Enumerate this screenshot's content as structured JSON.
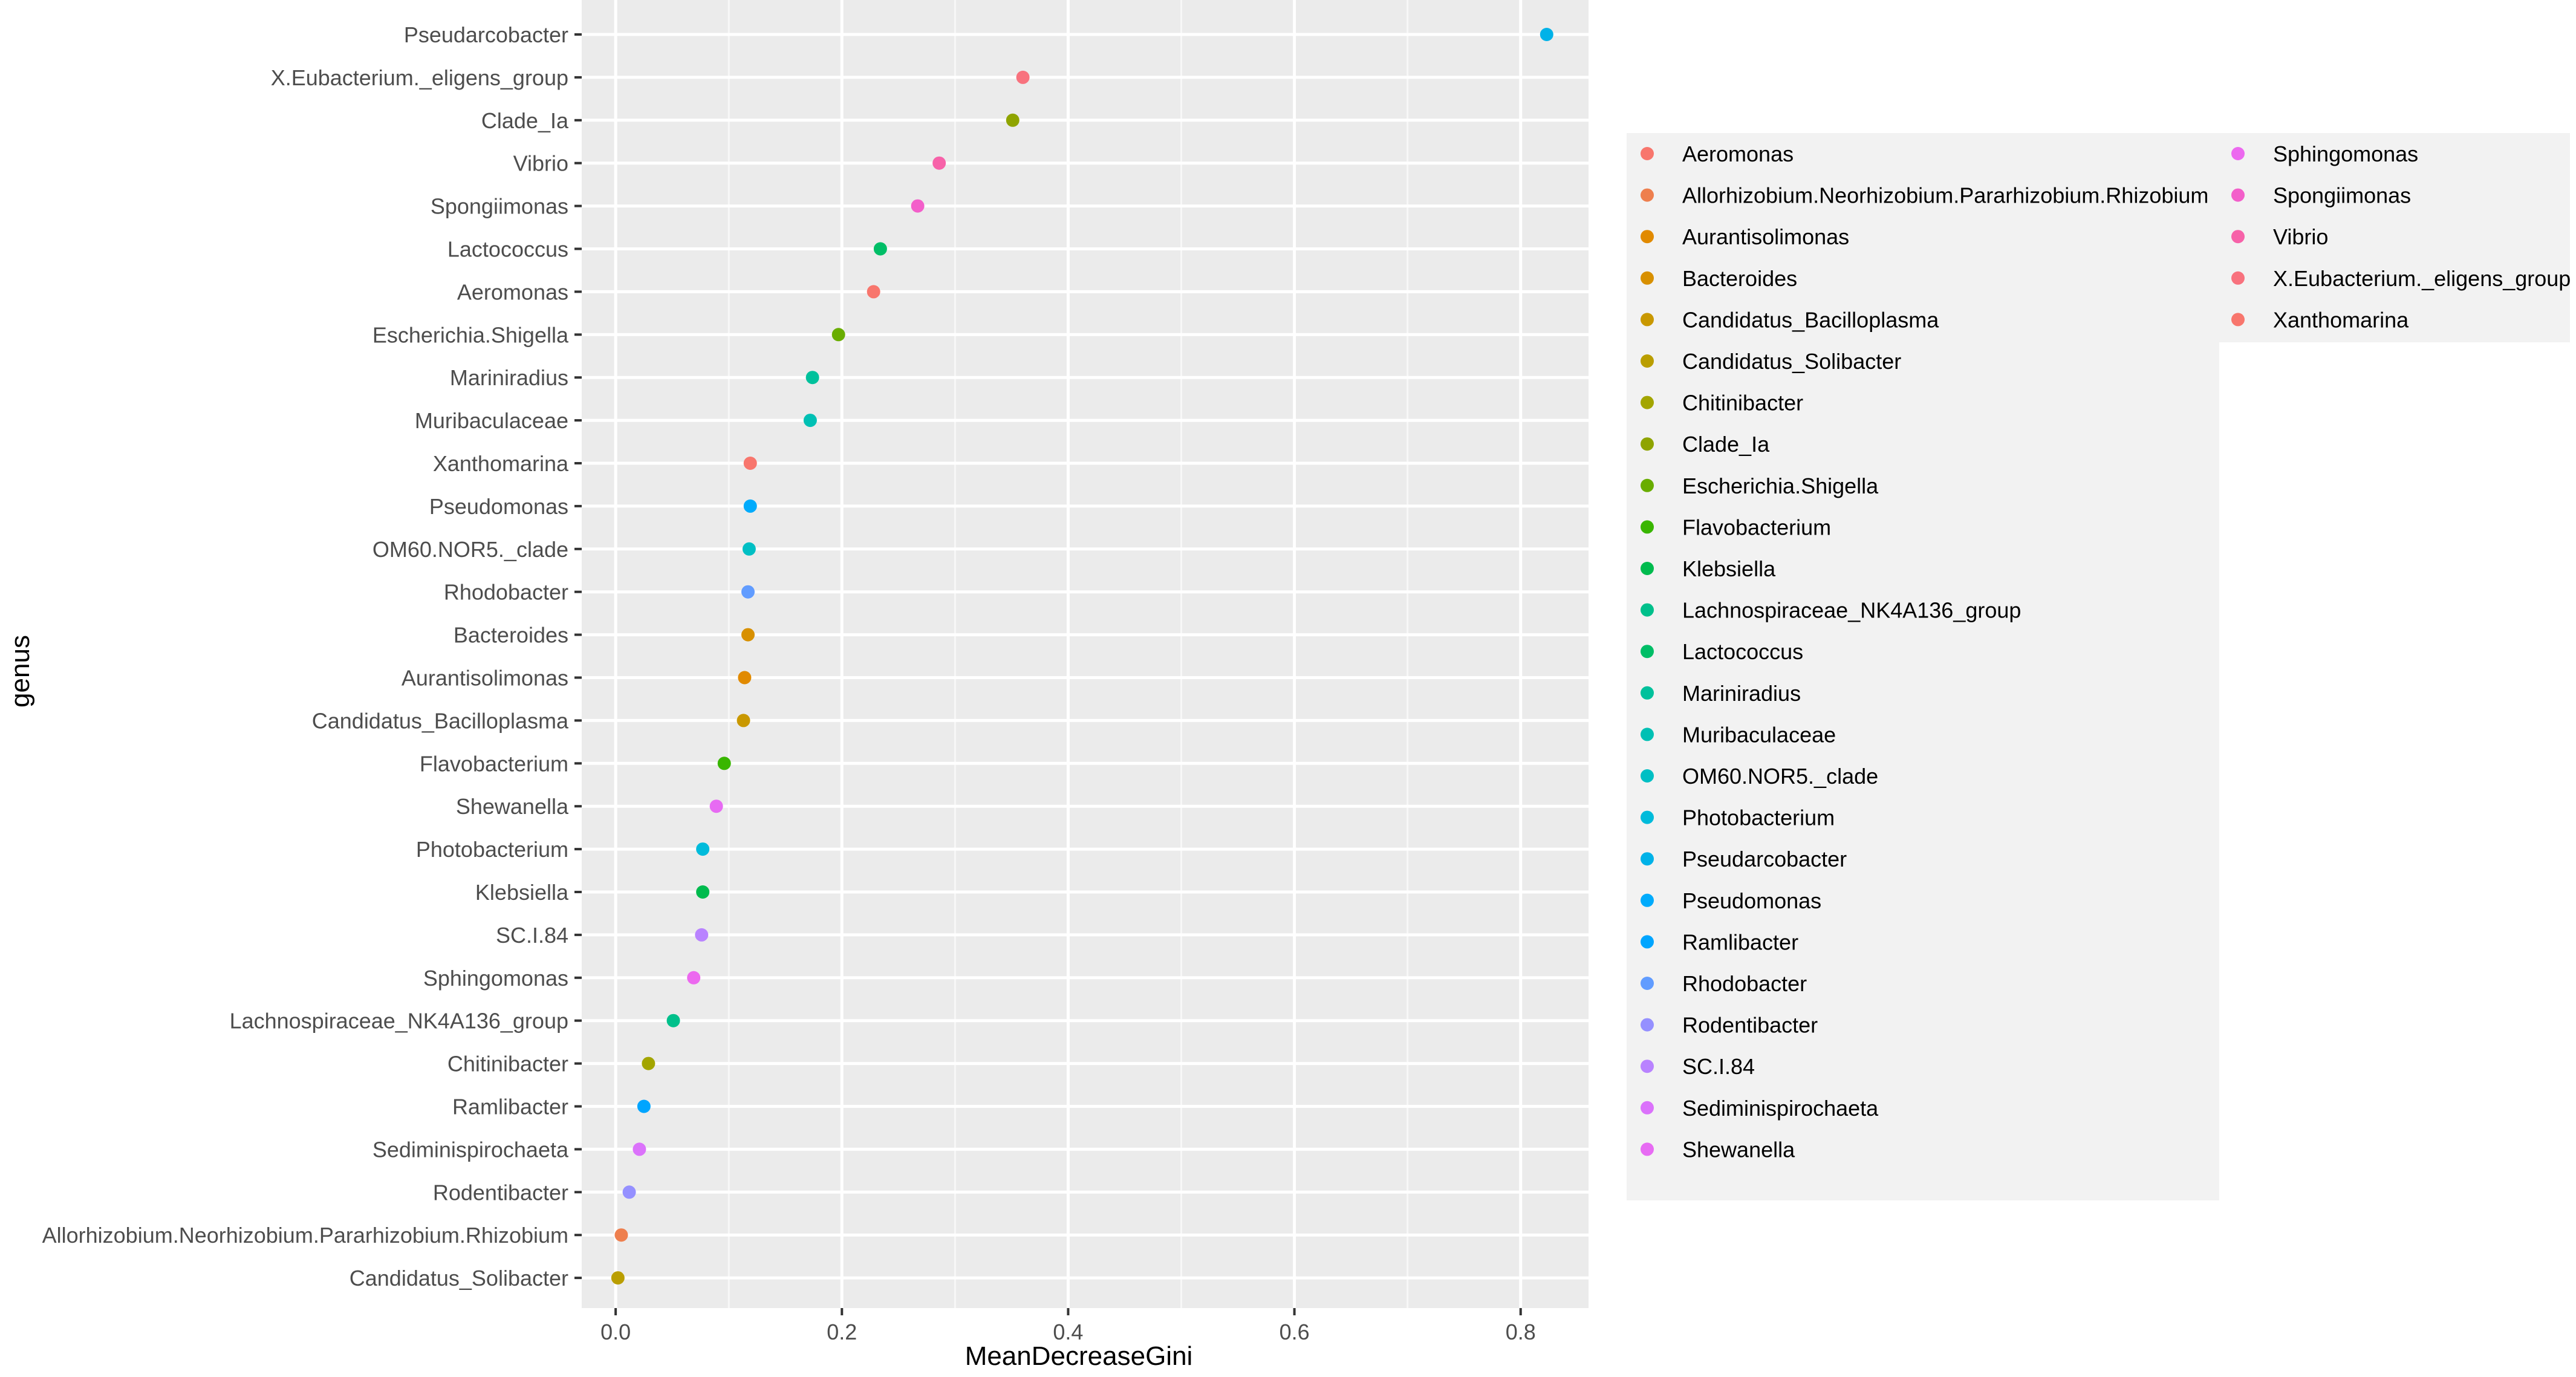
{
  "chart_data": {
    "type": "scatter",
    "title": "",
    "xlabel": "MeanDecreaseGini",
    "ylabel": "genus",
    "xlim": [
      -0.03,
      0.86
    ],
    "xticks": [
      0.0,
      0.2,
      0.4,
      0.6,
      0.8
    ],
    "xtick_labels": [
      "0.0",
      "0.2",
      "0.4",
      "0.6",
      "0.8"
    ],
    "grid": true,
    "legend_position": "right",
    "points": [
      {
        "genus": "Pseudarcobacter",
        "value": 0.823,
        "color": "#00B2E8"
      },
      {
        "genus": "X.Eubacterium._eligens_group",
        "value": 0.36,
        "color": "#F8727E"
      },
      {
        "genus": "Clade_Ia",
        "value": 0.351,
        "color": "#8FA400"
      },
      {
        "genus": "Vibrio",
        "value": 0.286,
        "color": "#F762A9"
      },
      {
        "genus": "Spongiimonas",
        "value": 0.267,
        "color": "#F35FCA"
      },
      {
        "genus": "Lactococcus",
        "value": 0.234,
        "color": "#00BE67"
      },
      {
        "genus": "Aeromonas",
        "value": 0.228,
        "color": "#F8766D"
      },
      {
        "genus": "Escherichia.Shigella",
        "value": 0.197,
        "color": "#69AD00"
      },
      {
        "genus": "Mariniradius",
        "value": 0.174,
        "color": "#00C19C"
      },
      {
        "genus": "Muribaculaceae",
        "value": 0.172,
        "color": "#00C0B4"
      },
      {
        "genus": "Xanthomarina",
        "value": 0.119,
        "color": "#F8766D"
      },
      {
        "genus": "Pseudomonas",
        "value": 0.119,
        "color": "#00ABFC"
      },
      {
        "genus": "OM60.NOR5._clade",
        "value": 0.118,
        "color": "#00BFC4"
      },
      {
        "genus": "Rhodobacter",
        "value": 0.117,
        "color": "#619CFF"
      },
      {
        "genus": "Bacteroides",
        "value": 0.117,
        "color": "#D89000"
      },
      {
        "genus": "Aurantisolimonas",
        "value": 0.114,
        "color": "#E18A00"
      },
      {
        "genus": "Candidatus_Bacilloplasma",
        "value": 0.113,
        "color": "#C99800"
      },
      {
        "genus": "Flavobacterium",
        "value": 0.096,
        "color": "#39B600"
      },
      {
        "genus": "Shewanella",
        "value": 0.089,
        "color": "#E76BF3"
      },
      {
        "genus": "Photobacterium",
        "value": 0.077,
        "color": "#00BBDB"
      },
      {
        "genus": "Klebsiella",
        "value": 0.077,
        "color": "#00BB4E"
      },
      {
        "genus": "SC.I.84",
        "value": 0.076,
        "color": "#B983FF"
      },
      {
        "genus": "Sphingomonas",
        "value": 0.069,
        "color": "#EC69EF"
      },
      {
        "genus": "Lachnospiraceae_NK4A136_group",
        "value": 0.051,
        "color": "#00C08B"
      },
      {
        "genus": "Chitinibacter",
        "value": 0.029,
        "color": "#A3A500"
      },
      {
        "genus": "Ramlibacter",
        "value": 0.025,
        "color": "#00A5FF"
      },
      {
        "genus": "Sediminispirochaeta",
        "value": 0.021,
        "color": "#DB72FB"
      },
      {
        "genus": "Rodentibacter",
        "value": 0.012,
        "color": "#9590FF"
      },
      {
        "genus": "Allorhizobium.Neorhizobium.Pararhizobium.Rhizobium",
        "value": 0.005,
        "color": "#EE7F4E"
      },
      {
        "genus": "Candidatus_Solibacter",
        "value": 0.002,
        "color": "#BA9E00"
      }
    ],
    "legend": [
      {
        "label": "Aeromonas",
        "color": "#F8766D"
      },
      {
        "label": "Allorhizobium.Neorhizobium.Pararhizobium.Rhizobium",
        "color": "#EE7F4E"
      },
      {
        "label": "Aurantisolimonas",
        "color": "#E18A00"
      },
      {
        "label": "Bacteroides",
        "color": "#D89000"
      },
      {
        "label": "Candidatus_Bacilloplasma",
        "color": "#C99800"
      },
      {
        "label": "Candidatus_Solibacter",
        "color": "#BA9E00"
      },
      {
        "label": "Chitinibacter",
        "color": "#A3A500"
      },
      {
        "label": "Clade_Ia",
        "color": "#8FA400"
      },
      {
        "label": "Escherichia.Shigella",
        "color": "#69AD00"
      },
      {
        "label": "Flavobacterium",
        "color": "#39B600"
      },
      {
        "label": "Klebsiella",
        "color": "#00BB4E"
      },
      {
        "label": "Lachnospiraceae_NK4A136_group",
        "color": "#00C08B"
      },
      {
        "label": "Lactococcus",
        "color": "#00BE67"
      },
      {
        "label": "Mariniradius",
        "color": "#00C19C"
      },
      {
        "label": "Muribaculaceae",
        "color": "#00C0B4"
      },
      {
        "label": "OM60.NOR5._clade",
        "color": "#00BFC4"
      },
      {
        "label": "Photobacterium",
        "color": "#00BBDB"
      },
      {
        "label": "Pseudarcobacter",
        "color": "#00B2E8"
      },
      {
        "label": "Pseudomonas",
        "color": "#00ABFC"
      },
      {
        "label": "Ramlibacter",
        "color": "#00A5FF"
      },
      {
        "label": "Rhodobacter",
        "color": "#619CFF"
      },
      {
        "label": "Rodentibacter",
        "color": "#9590FF"
      },
      {
        "label": "SC.I.84",
        "color": "#B983FF"
      },
      {
        "label": "Sediminispirochaeta",
        "color": "#DB72FB"
      },
      {
        "label": "Shewanella",
        "color": "#E76BF3"
      },
      {
        "label": "Sphingomonas",
        "color": "#EC69EF"
      },
      {
        "label": "Spongiimonas",
        "color": "#F35FCA"
      },
      {
        "label": "Vibrio",
        "color": "#F762A9"
      },
      {
        "label": "X.Eubacterium._eligens_group",
        "color": "#F8727E"
      },
      {
        "label": "Xanthomarina",
        "color": "#F8766D"
      }
    ]
  }
}
